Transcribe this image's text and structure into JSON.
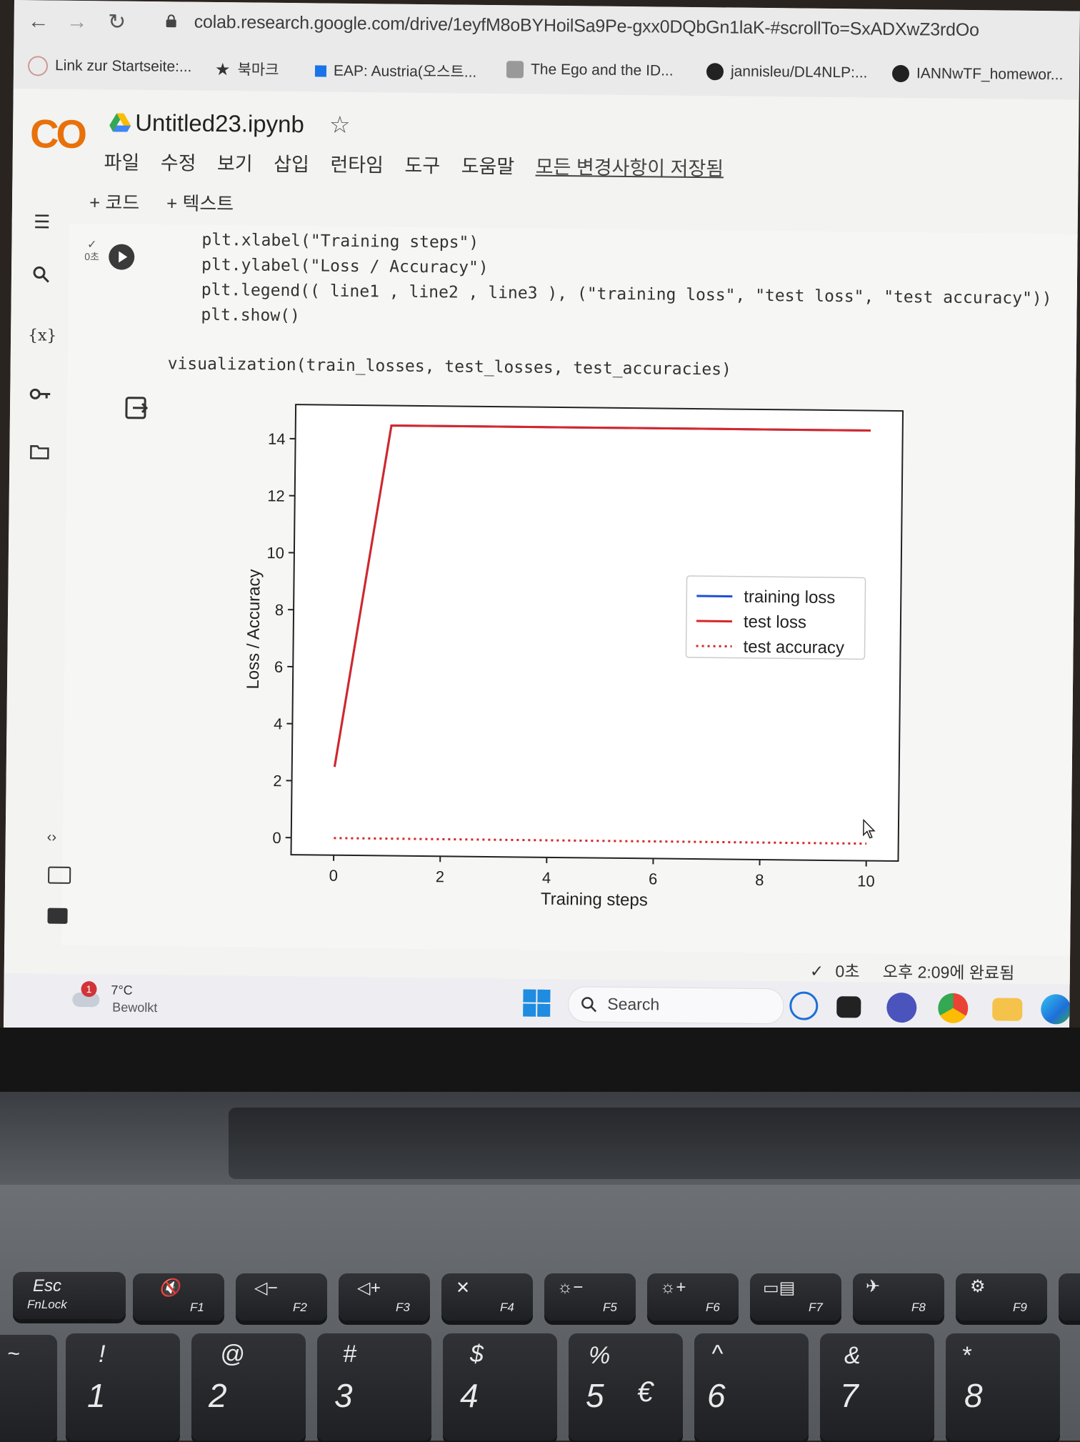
{
  "browser": {
    "url": "colab.research.google.com/drive/1eyfM8oBYHoilSa9Pe-gxx0DQbGn1laK-#scrollTo=SxADXwZ3rdOo",
    "bookmarks": [
      "Link zur Startseite:...",
      "북마크",
      "EAP: Austria(오스트...",
      "The Ego and the ID...",
      "jannisleu/DL4NLP:...",
      "IANNwTF_homewor..."
    ]
  },
  "colab": {
    "logo": "CO",
    "notebook_title": "Untitled23.ipynb",
    "menu": [
      "파일",
      "수정",
      "보기",
      "삽입",
      "런타임",
      "도구",
      "도움말"
    ],
    "saved_status": "모든 변경사항이 저장됨",
    "toolbar": {
      "add_code": "+ 코드",
      "add_text": "+ 텍스트"
    },
    "cell": {
      "exec_time": "0초",
      "code_lines": [
        "plt.xlabel(\"Training steps\")",
        "plt.ylabel(\"Loss / Accuracy\")",
        "plt.legend(( line1 , line2 , line3 ), (\"training loss\", \"test loss\", \"test accuracy\"))",
        "plt.show()",
        "",
        "visualization(train_losses, test_losses, test_accuracies)"
      ]
    },
    "status": {
      "elapsed": "0초",
      "completed": "오후 2:09에 완료됨"
    }
  },
  "chart_data": {
    "type": "line",
    "xlabel": "Training steps",
    "ylabel": "Loss / Accuracy",
    "xlim": [
      -0.8,
      10.6
    ],
    "ylim": [
      -0.6,
      15.2
    ],
    "x_ticks": [
      0,
      2,
      4,
      6,
      8,
      10
    ],
    "y_ticks": [
      0,
      2,
      4,
      6,
      8,
      10,
      12,
      14
    ],
    "legend_position": "center-right",
    "series": [
      {
        "name": "training loss",
        "color": "#1f4fd8",
        "style": "solid",
        "x": [
          0,
          1,
          2,
          3,
          4,
          5,
          6,
          7,
          8,
          9,
          10
        ],
        "values": [
          2.5,
          14.5,
          14.5,
          14.5,
          14.5,
          14.5,
          14.5,
          14.5,
          14.5,
          14.5,
          14.5
        ]
      },
      {
        "name": "test loss",
        "color": "#d62728",
        "style": "solid",
        "x": [
          0,
          1,
          2,
          3,
          4,
          5,
          6,
          7,
          8,
          9,
          10
        ],
        "values": [
          2.5,
          14.5,
          14.5,
          14.5,
          14.5,
          14.5,
          14.5,
          14.5,
          14.5,
          14.5,
          14.5
        ]
      },
      {
        "name": "test accuracy",
        "color": "#d62728",
        "style": "dotted",
        "x": [
          0,
          1,
          2,
          3,
          4,
          5,
          6,
          7,
          8,
          9,
          10
        ],
        "values": [
          0,
          0,
          0,
          0,
          0,
          0,
          0,
          0,
          0,
          0,
          0
        ]
      }
    ]
  },
  "taskbar": {
    "weather_badge": "1",
    "weather_temp": "7°C",
    "weather_desc": "Bewolkt",
    "search_label": "Search"
  },
  "keyboard": {
    "esc_main": "Esc",
    "esc_sub": "FnLock",
    "fkeys": [
      "F1",
      "F2",
      "F3",
      "F4",
      "F5",
      "F6",
      "F7",
      "F8",
      "F9"
    ],
    "number_row": [
      {
        "top": "!",
        "bottom": "1"
      },
      {
        "top": "@",
        "bottom": "2"
      },
      {
        "top": "#",
        "bottom": "3"
      },
      {
        "top": "$",
        "bottom": "4"
      },
      {
        "top": "%",
        "bottom": "5",
        "extra": "€"
      },
      {
        "top": "^",
        "bottom": "6"
      },
      {
        "top": "&",
        "bottom": "7"
      },
      {
        "top": "*",
        "bottom": "8"
      }
    ],
    "tilde": "~"
  }
}
